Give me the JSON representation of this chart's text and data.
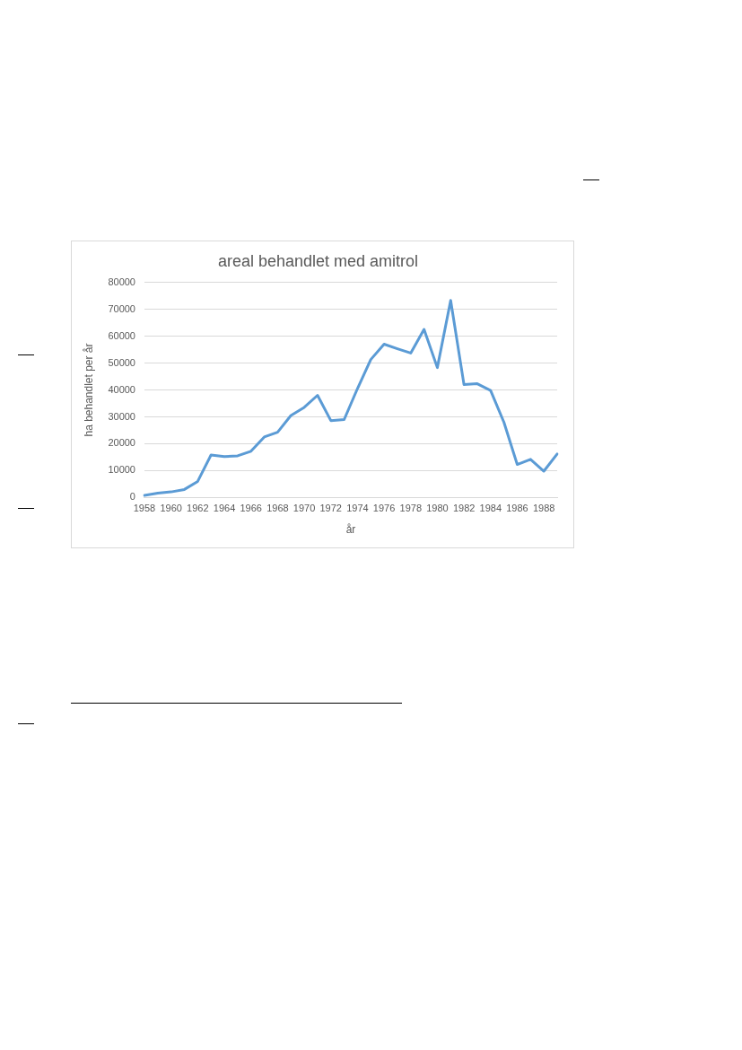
{
  "chart_data": {
    "type": "line",
    "title": "areal behandlet med amitrol",
    "xlabel": "år",
    "ylabel": "ha behandlet per år",
    "categories": [
      "1958",
      null,
      "1960",
      null,
      "1962",
      null,
      "1964",
      null,
      "1966",
      null,
      "1968",
      null,
      "1970",
      null,
      "1972",
      null,
      "1974",
      null,
      "1976",
      null,
      "1978",
      null,
      "1980",
      null,
      "1982",
      null,
      "1984",
      null,
      "1986",
      null,
      "1988",
      null
    ],
    "series": [
      {
        "color": "#5b9bd5",
        "values": [
          800,
          1600,
          2100,
          3000,
          6000,
          15800,
          15200,
          15500,
          17200,
          22500,
          24300,
          30500,
          33500,
          38000,
          28600,
          29000,
          40500,
          51300,
          57000,
          55300,
          53700,
          62500,
          48300,
          73300,
          42000,
          42300,
          39800,
          28000,
          12300,
          14200,
          9800,
          16200
        ]
      }
    ],
    "ylim": [
      0,
      80000
    ],
    "yticks": [
      0,
      10000,
      20000,
      30000,
      40000,
      50000,
      60000,
      70000,
      80000
    ],
    "grid": "y",
    "legend": false,
    "marker": "none",
    "line_style": "solid"
  }
}
